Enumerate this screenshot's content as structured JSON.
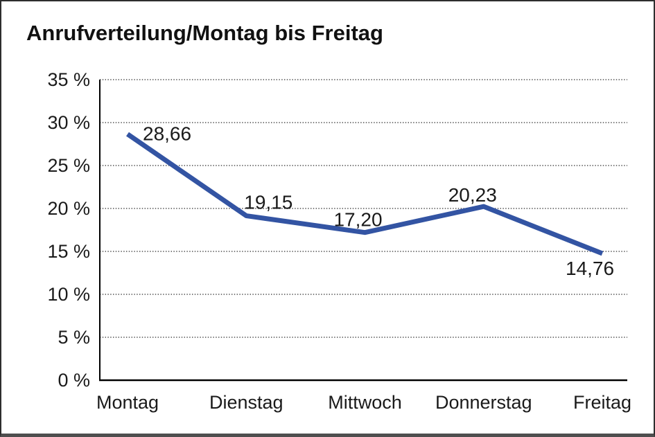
{
  "chart_data": {
    "type": "line",
    "title": "Anrufverteilung/Montag bis Freitag",
    "categories": [
      "Montag",
      "Dienstag",
      "Mittwoch",
      "Donnerstag",
      "Freitag"
    ],
    "values": [
      28.66,
      19.15,
      17.2,
      20.23,
      14.76
    ],
    "point_labels": [
      "28,66",
      "19,15",
      "17,20",
      "20,23",
      "14,76"
    ],
    "ylim": [
      0,
      35
    ],
    "ytick_step": 5,
    "ytick_labels": [
      "0 %",
      "5 %",
      "10 %",
      "15 %",
      "20 %",
      "25 %",
      "30 %",
      "35 %"
    ],
    "xlabel": "",
    "ylabel": "",
    "grid": "horizontal-dotted",
    "legend": "none",
    "line_color": "#3354A3",
    "axis_color": "#000000",
    "grid_color": "#4a4a4a",
    "text_color": "#1a1a1a"
  }
}
